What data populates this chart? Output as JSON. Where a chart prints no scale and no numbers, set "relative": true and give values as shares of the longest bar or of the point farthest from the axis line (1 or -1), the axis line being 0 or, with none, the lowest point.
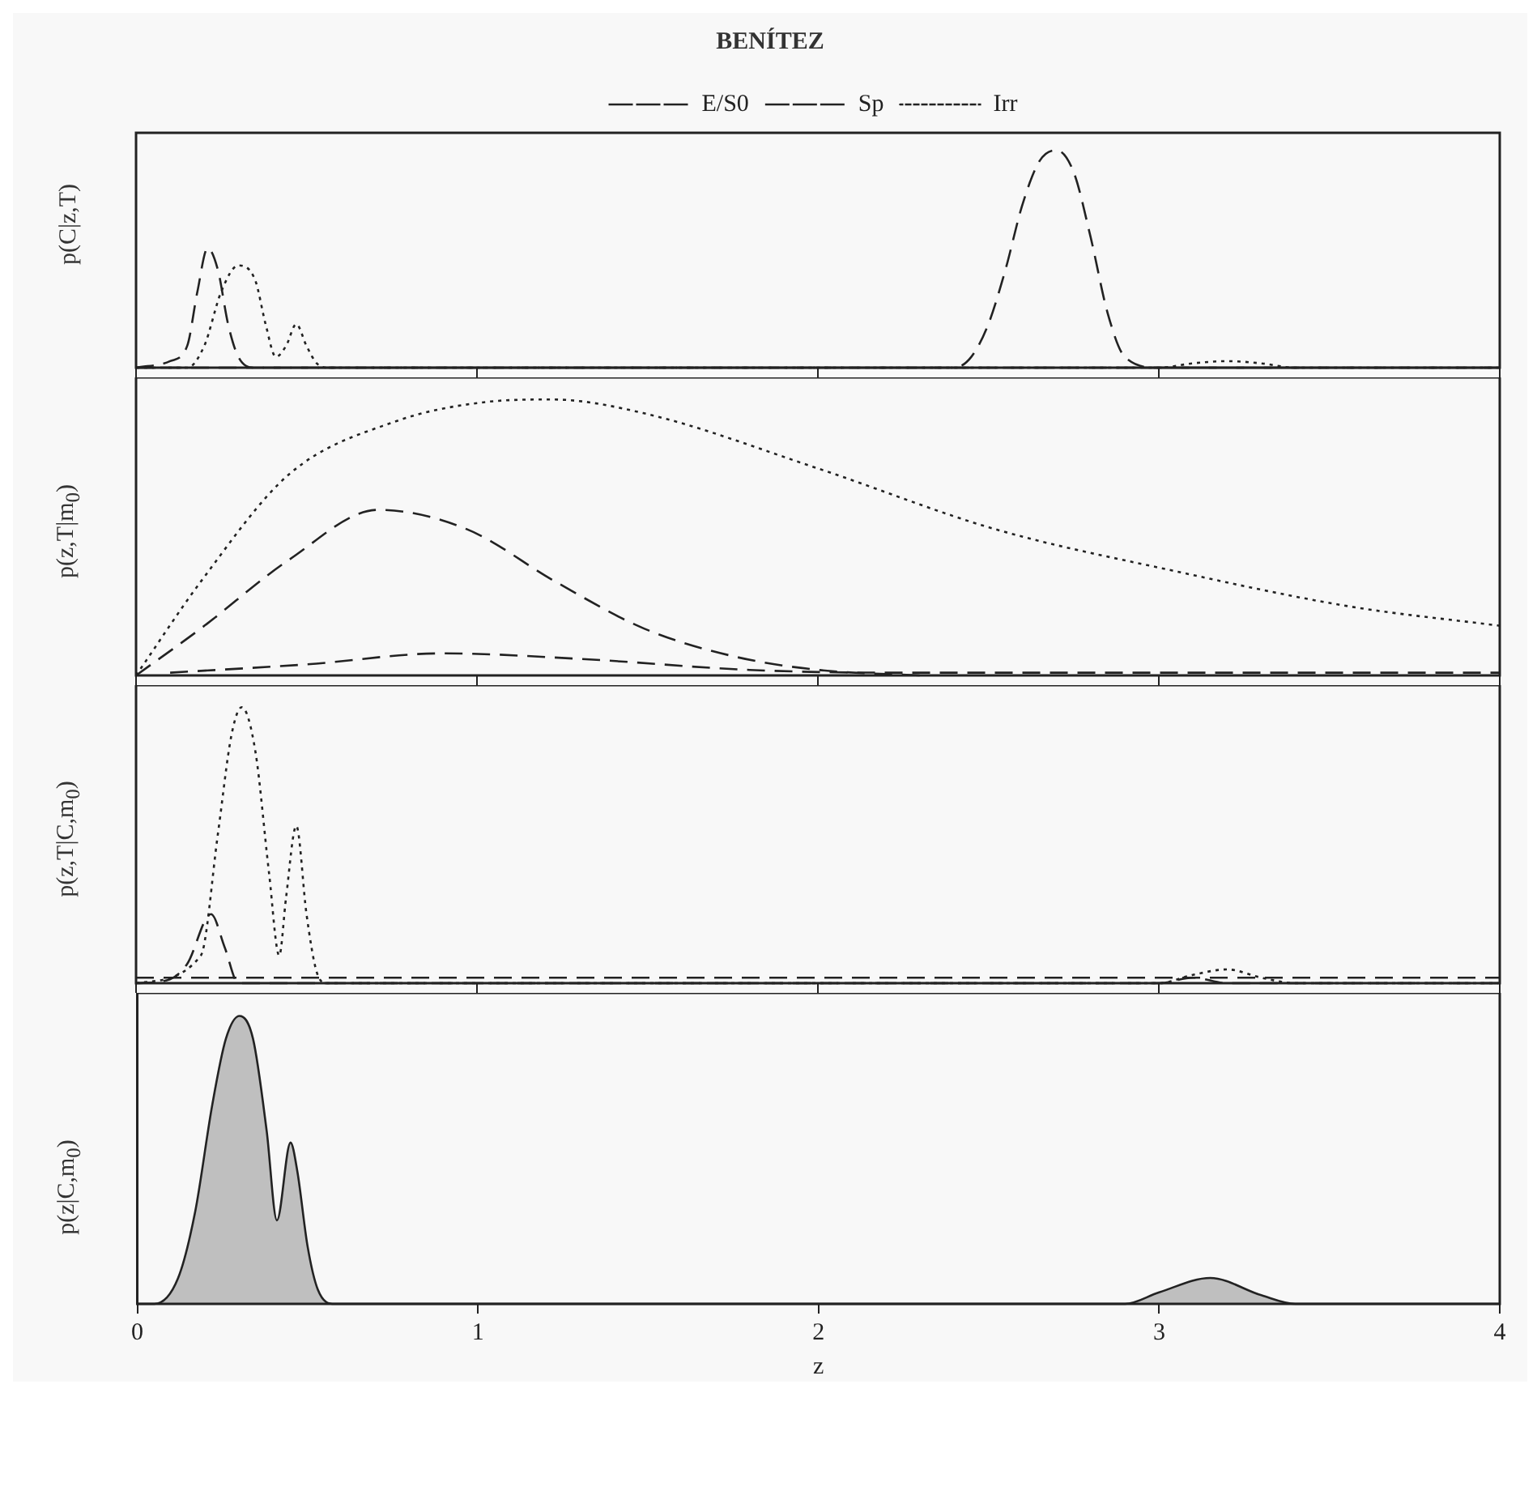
{
  "chart_data": [
    {
      "type": "line",
      "title": "BENÍTEZ",
      "ylabel": "p(C|z,T)",
      "relative": true,
      "xlim": [
        0,
        4
      ],
      "xticks": [
        0,
        1,
        2,
        3,
        4
      ],
      "tick_labels": false,
      "legend": "top",
      "series": [
        {
          "name": "E/S0",
          "color": "#222222",
          "line_style": "dashed",
          "x": [
            0,
            2.4,
            2.45,
            2.5,
            2.55,
            2.6,
            2.65,
            2.7,
            2.75,
            2.8,
            2.85,
            2.9,
            3.0,
            4
          ],
          "values": [
            0,
            0,
            0.05,
            0.2,
            0.45,
            0.75,
            0.95,
            1,
            0.9,
            0.6,
            0.25,
            0.05,
            0,
            0
          ]
        },
        {
          "name": "Sp",
          "color": "#222222",
          "line_style": "dashed",
          "x": [
            0,
            0.1,
            0.15,
            0.18,
            0.21,
            0.24,
            0.27,
            0.3,
            0.35,
            4
          ],
          "values": [
            0,
            0.03,
            0.1,
            0.35,
            0.55,
            0.45,
            0.2,
            0.05,
            0,
            0
          ]
        },
        {
          "name": "Irr",
          "color": "#222222",
          "line_style": "dotted",
          "x": [
            0,
            0.15,
            0.2,
            0.25,
            0.3,
            0.35,
            0.38,
            0.41,
            0.44,
            0.47,
            0.5,
            0.53,
            0.56,
            3.0,
            3.1,
            3.2,
            3.3,
            3.4,
            4
          ],
          "values": [
            0,
            0,
            0.1,
            0.35,
            0.47,
            0.4,
            0.2,
            0.05,
            0.1,
            0.2,
            0.1,
            0.02,
            0,
            0,
            0.02,
            0.03,
            0.02,
            0,
            0
          ]
        }
      ]
    },
    {
      "type": "line",
      "ylabel": "p(z,T|m$_{0}$)",
      "relative": true,
      "xlim": [
        0,
        4
      ],
      "xticks": [
        0,
        1,
        2,
        3,
        4
      ],
      "tick_labels": false,
      "series": [
        {
          "color": "#222222",
          "line_style": "dashed",
          "x": [
            0.1,
            0.5,
            0.9,
            1.3,
            1.8,
            2.2,
            4
          ],
          "values": [
            0.01,
            0.04,
            0.08,
            0.06,
            0.02,
            0.01,
            0.01
          ]
        },
        {
          "color": "#222222",
          "line_style": "dashed",
          "x": [
            0,
            0.19,
            0.45,
            0.71,
            0.97,
            1.23,
            1.49,
            1.75,
            2.0,
            2.3
          ],
          "values": [
            0,
            0.17,
            0.42,
            0.6,
            0.53,
            0.34,
            0.17,
            0.07,
            0.02,
            0
          ]
        },
        {
          "color": "#222222",
          "line_style": "dotted",
          "x": [
            0,
            0.19,
            0.45,
            0.76,
            1.02,
            1.22,
            1.49,
            2.0,
            2.52,
            3.04,
            3.56,
            4
          ],
          "values": [
            0,
            0.34,
            0.73,
            0.92,
            0.99,
            1,
            0.95,
            0.75,
            0.53,
            0.38,
            0.25,
            0.18
          ]
        }
      ]
    },
    {
      "type": "line",
      "ylabel": "p(z,T|C,m$_{0}$)",
      "relative": true,
      "xlim": [
        0,
        4
      ],
      "xticks": [
        0,
        1,
        2,
        3,
        4
      ],
      "tick_labels": false,
      "series": [
        {
          "color": "#222222",
          "line_style": "dashed",
          "x": [
            0,
            4
          ],
          "values": [
            0.02,
            0.02
          ]
        },
        {
          "color": "#222222",
          "line_style": "dashed",
          "x": [
            0,
            0.09,
            0.15,
            0.22,
            0.26,
            0.3,
            3.0,
            3.1,
            3.2,
            4
          ],
          "values": [
            0,
            0.01,
            0.07,
            0.25,
            0.13,
            0,
            0,
            0.02,
            0,
            0
          ]
        },
        {
          "color": "#222222",
          "line_style": "dotted",
          "x": [
            0,
            0.19,
            0.24,
            0.28,
            0.31,
            0.35,
            0.39,
            0.42,
            0.44,
            0.47,
            0.5,
            0.53,
            0.56,
            3.0,
            3.1,
            3.2,
            3.3,
            3.4,
            4
          ],
          "values": [
            0,
            0.1,
            0.54,
            0.9,
            1,
            0.84,
            0.4,
            0.1,
            0.31,
            0.57,
            0.25,
            0.04,
            0,
            0,
            0.03,
            0.05,
            0.02,
            0,
            0
          ]
        }
      ]
    },
    {
      "type": "area",
      "ylabel": "p(z|C,m$_{0}$)",
      "xlabel": "z",
      "relative": true,
      "xlim": [
        0,
        4
      ],
      "xticks": [
        0,
        1,
        2,
        3,
        4
      ],
      "tick_labels": "x",
      "series": [
        {
          "color": "#222222",
          "line_style": "solid",
          "x": [
            0,
            0.05,
            0.12,
            0.17,
            0.22,
            0.26,
            0.3,
            0.34,
            0.38,
            0.41,
            0.45,
            0.47,
            0.5,
            0.53,
            0.58,
            2.9,
            3.0,
            3.15,
            3.3,
            3.4,
            4
          ],
          "values": [
            0,
            0,
            0.09,
            0.32,
            0.69,
            0.92,
            1,
            0.92,
            0.6,
            0.29,
            0.56,
            0.46,
            0.2,
            0.05,
            0,
            0,
            0.04,
            0.09,
            0.03,
            0,
            0
          ]
        }
      ]
    }
  ]
}
